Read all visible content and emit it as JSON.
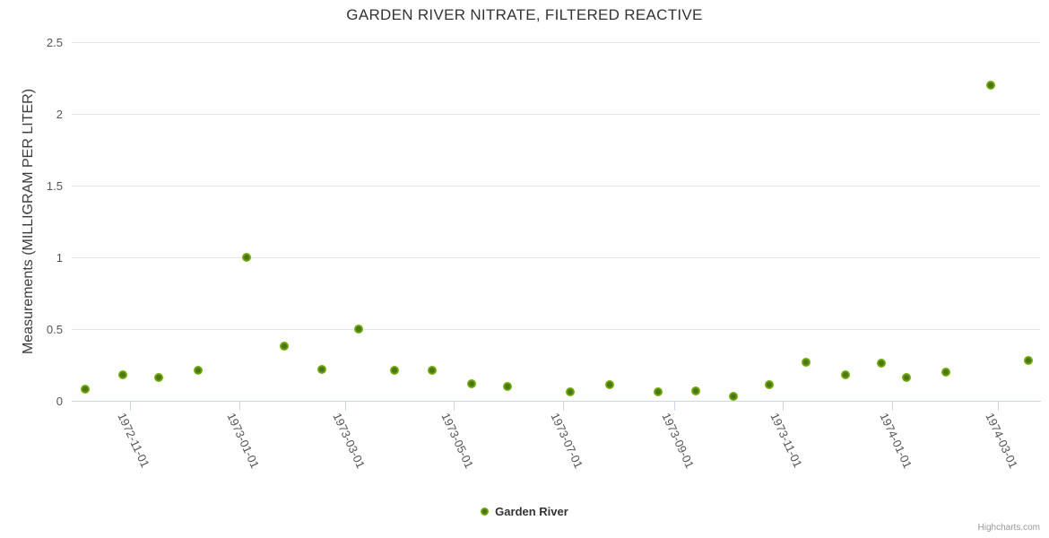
{
  "credits": "Highcharts.com",
  "colors": {
    "point_outer": "#7fbe13",
    "point_inner": "#4b7417",
    "gridline": "#e6e6e6",
    "axis_line": "#ccd6eb",
    "title_text": "#333333",
    "axis_label_text": "#555555",
    "credits_text": "#999999"
  },
  "chart_data": {
    "type": "scatter",
    "title": "GARDEN RIVER NITRATE, FILTERED REACTIVE",
    "xlabel": "",
    "ylabel": "Measurements (MILLIGRAM PER LITER)",
    "ylim": [
      0,
      2.5
    ],
    "grid": true,
    "legend_position": "bottom-center",
    "y_ticks": [
      {
        "value": 0,
        "label": "0"
      },
      {
        "value": 0.5,
        "label": "0.5"
      },
      {
        "value": 1,
        "label": "1"
      },
      {
        "value": 1.5,
        "label": "1.5"
      },
      {
        "value": 2,
        "label": "2"
      },
      {
        "value": 2.5,
        "label": "2.5"
      }
    ],
    "x_ticks": [
      {
        "date": "1972-11-01",
        "label": "1972-11-01"
      },
      {
        "date": "1973-01-01",
        "label": "1973-01-01"
      },
      {
        "date": "1973-03-01",
        "label": "1973-03-01"
      },
      {
        "date": "1973-05-01",
        "label": "1973-05-01"
      },
      {
        "date": "1973-07-01",
        "label": "1973-07-01"
      },
      {
        "date": "1973-09-01",
        "label": "1973-09-01"
      },
      {
        "date": "1973-11-01",
        "label": "1973-11-01"
      },
      {
        "date": "1974-01-01",
        "label": "1974-01-01"
      },
      {
        "date": "1974-03-01",
        "label": "1974-03-01"
      }
    ],
    "x_range": [
      "1972-09-29",
      "1974-03-25"
    ],
    "series": [
      {
        "name": "Garden River",
        "points": [
          {
            "x": "1972-10-07",
            "y": 0.08
          },
          {
            "x": "1972-10-28",
            "y": 0.18
          },
          {
            "x": "1972-11-17",
            "y": 0.16
          },
          {
            "x": "1972-12-09",
            "y": 0.21
          },
          {
            "x": "1973-01-05",
            "y": 1.0
          },
          {
            "x": "1973-01-26",
            "y": 0.38
          },
          {
            "x": "1973-02-16",
            "y": 0.22
          },
          {
            "x": "1973-03-09",
            "y": 0.5
          },
          {
            "x": "1973-03-29",
            "y": 0.21
          },
          {
            "x": "1973-04-19",
            "y": 0.21
          },
          {
            "x": "1973-05-11",
            "y": 0.12
          },
          {
            "x": "1973-05-31",
            "y": 0.1
          },
          {
            "x": "1973-07-05",
            "y": 0.06
          },
          {
            "x": "1973-07-27",
            "y": 0.11
          },
          {
            "x": "1973-08-23",
            "y": 0.06
          },
          {
            "x": "1973-09-13",
            "y": 0.07
          },
          {
            "x": "1973-10-04",
            "y": 0.03
          },
          {
            "x": "1973-10-24",
            "y": 0.11
          },
          {
            "x": "1973-11-14",
            "y": 0.27
          },
          {
            "x": "1973-12-06",
            "y": 0.18
          },
          {
            "x": "1973-12-26",
            "y": 0.26
          },
          {
            "x": "1974-01-09",
            "y": 0.16
          },
          {
            "x": "1974-01-31",
            "y": 0.2
          },
          {
            "x": "1974-02-25",
            "y": 2.2
          },
          {
            "x": "1974-03-18",
            "y": 0.28
          }
        ]
      }
    ]
  }
}
